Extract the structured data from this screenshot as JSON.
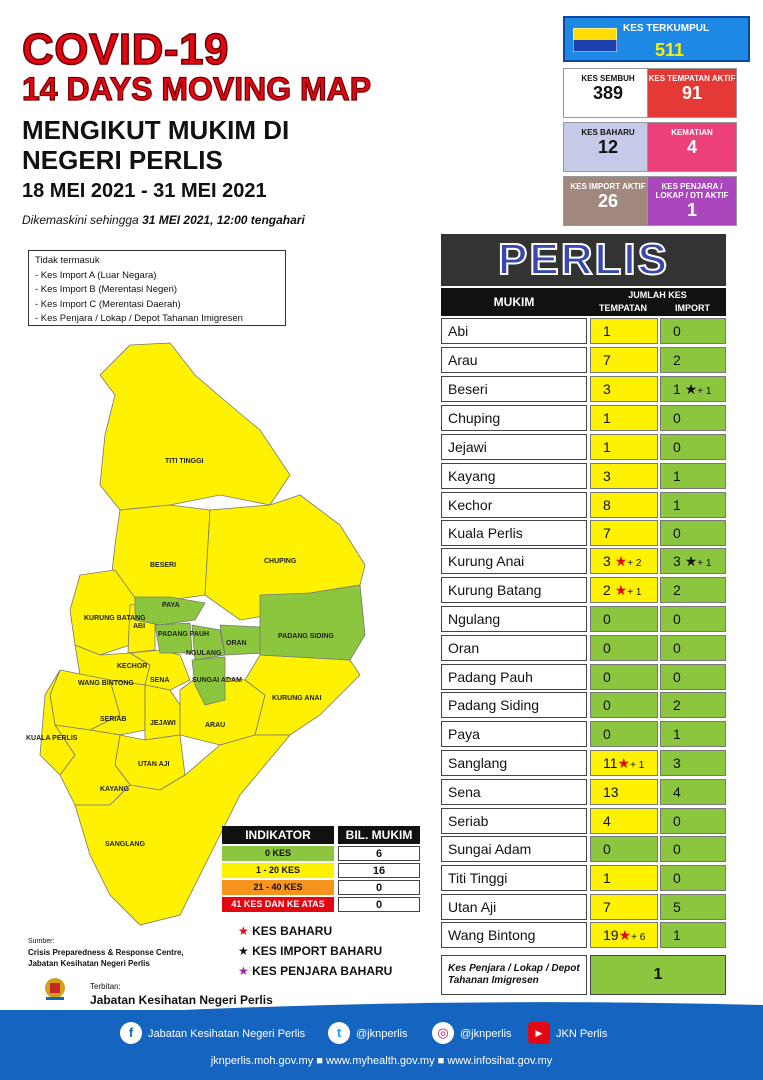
{
  "title": {
    "line1": "COVID-19",
    "line2": "14 DAYS MOVING MAP",
    "line3": "MENGIKUT MUKIM DI NEGERI PERLIS",
    "dates": "18 MEI 2021 - 31 MEI 2021",
    "updated_prefix": "Dikemaskini sehingga ",
    "updated_date": "31 MEI 2021, 12:00 tengahari"
  },
  "note": {
    "heading": "Tidak termasuk",
    "items": [
      "- Kes Import A (Luar Negara)",
      "- Kes Import B (Merentasi Negeri)",
      "- Kes Import C (Merentasi Daerah)",
      "- Kes Penjara / Lokap / Depot Tahanan Imigresen"
    ]
  },
  "stats": {
    "total": {
      "label": "KES TERKUMPUL",
      "value": "511"
    },
    "sembuh": {
      "label": "KES SEMBUH",
      "value": "389"
    },
    "tempatan": {
      "label": "KES TEMPATAN AKTIF",
      "value": "91"
    },
    "baharu": {
      "label": "KES BAHARU",
      "value": "12"
    },
    "kematian": {
      "label": "KEMATIAN",
      "value": "4"
    },
    "import": {
      "label": "KES IMPORT AKTIF",
      "value": "26"
    },
    "penjara": {
      "label": "KES PENJARA / LOKAP / DTI AKTIF",
      "value": "1"
    }
  },
  "table": {
    "state": "PERLIS",
    "col_mukim": "MUKIM",
    "col_jumlah": "JUMLAH KES",
    "col_tempatan": "TEMPATAN",
    "col_import": "IMPORT",
    "rows": [
      {
        "name": "Abi",
        "tempatan": "1",
        "t_extra": "",
        "import": "0",
        "i_extra": ""
      },
      {
        "name": "Arau",
        "tempatan": "7",
        "t_extra": "",
        "import": "2",
        "i_extra": ""
      },
      {
        "name": "Beseri",
        "tempatan": "3",
        "t_extra": "",
        "import": "1",
        "i_extra": "+ 1"
      },
      {
        "name": "Chuping",
        "tempatan": "1",
        "t_extra": "",
        "import": "0",
        "i_extra": ""
      },
      {
        "name": "Jejawi",
        "tempatan": "1",
        "t_extra": "",
        "import": "0",
        "i_extra": ""
      },
      {
        "name": "Kayang",
        "tempatan": "3",
        "t_extra": "",
        "import": "1",
        "i_extra": ""
      },
      {
        "name": "Kechor",
        "tempatan": "8",
        "t_extra": "",
        "import": "1",
        "i_extra": ""
      },
      {
        "name": "Kuala Perlis",
        "tempatan": "7",
        "t_extra": "",
        "import": "0",
        "i_extra": ""
      },
      {
        "name": "Kurung Anai",
        "tempatan": "3",
        "t_extra": "+ 2",
        "import": "3",
        "i_extra": "+ 1"
      },
      {
        "name": "Kurung Batang",
        "tempatan": "2",
        "t_extra": "+ 1",
        "import": "2",
        "i_extra": ""
      },
      {
        "name": "Ngulang",
        "tempatan": "0",
        "t_extra": "",
        "import": "0",
        "i_extra": ""
      },
      {
        "name": "Oran",
        "tempatan": "0",
        "t_extra": "",
        "import": "0",
        "i_extra": ""
      },
      {
        "name": "Padang Pauh",
        "tempatan": "0",
        "t_extra": "",
        "import": "0",
        "i_extra": ""
      },
      {
        "name": "Padang Siding",
        "tempatan": "0",
        "t_extra": "",
        "import": "2",
        "i_extra": ""
      },
      {
        "name": "Paya",
        "tempatan": "0",
        "t_extra": "",
        "import": "1",
        "i_extra": ""
      },
      {
        "name": "Sanglang",
        "tempatan": "11",
        "t_extra": "+ 1",
        "import": "3",
        "i_extra": ""
      },
      {
        "name": "Sena",
        "tempatan": "13",
        "t_extra": "",
        "import": "4",
        "i_extra": ""
      },
      {
        "name": "Seriab",
        "tempatan": "4",
        "t_extra": "",
        "import": "0",
        "i_extra": ""
      },
      {
        "name": "Sungai Adam",
        "tempatan": "0",
        "t_extra": "",
        "import": "0",
        "i_extra": ""
      },
      {
        "name": "Titi Tinggi",
        "tempatan": "1",
        "t_extra": "",
        "import": "0",
        "i_extra": ""
      },
      {
        "name": "Utan Aji",
        "tempatan": "7",
        "t_extra": "",
        "import": "5",
        "i_extra": ""
      },
      {
        "name": "Wang Bintong",
        "tempatan": "19",
        "t_extra": "+ 6",
        "import": "1",
        "i_extra": ""
      }
    ],
    "penjara_label": "Kes Penjara / Lokap / Depot Tahanan Imigresen",
    "penjara_value": "1"
  },
  "indicator": {
    "head": "INDIKATOR",
    "head2": "BIL. MUKIM",
    "rows": [
      {
        "label": "0 KES",
        "value": "6",
        "color": "#8cc63f"
      },
      {
        "label": "1 - 20 KES",
        "value": "16",
        "color": "#fff200"
      },
      {
        "label": "21 - 40 KES",
        "value": "0",
        "color": "#f7941d"
      },
      {
        "label": "41 KES DAN KE ATAS",
        "value": "0",
        "color": "#e30613"
      }
    ],
    "legend": [
      {
        "label": "KES BAHARU",
        "color": "#e30613"
      },
      {
        "label": "KES IMPORT BAHARU",
        "color": "#111111"
      },
      {
        "label": "KES PENJARA BAHARU",
        "color": "#9c27b0"
      }
    ]
  },
  "map_labels": {
    "titi_tinggi": "TITI TINGGI",
    "beseri": "BESERI",
    "chuping": "CHUPING",
    "kurung_batang": "KURUNG BATANG",
    "abi": "ABI",
    "paya": "PAYA",
    "padang_pauh": "PADANG PAUH",
    "ngulang": "NGULANG",
    "oran": "ORAN",
    "padang_siding": "PADANG SIDING",
    "kechor": "KECHOR",
    "wang_bintong": "WANG BINTONG",
    "sena": "SENA",
    "sungai_adam": "SUNGAI ADAM",
    "kurung_anai": "KURUNG ANAI",
    "seriab": "SERIAB",
    "jejawi": "JEJAWI",
    "arau": "ARAU",
    "kuala_perlis": "KUALA PERLIS",
    "utan_aji": "UTAN AJI",
    "kayang": "KAYANG",
    "sanglang": "SANGLANG"
  },
  "source": {
    "label": "Sumber:",
    "line1": "Crisis Preparedness & Response Centre,",
    "line2": "Jabatan Kesihatan Negeri Perlis"
  },
  "publisher": {
    "label": "Terbitan:",
    "name": "Jabatan Kesihatan Negeri Perlis"
  },
  "footer": {
    "facebook": "Jabatan Kesihatan Negeri Perlis",
    "twitter": "@jknperlis",
    "instagram": "@jknperlis",
    "youtube": "JKN Perlis",
    "websites": "jknperlis.moh.gov.my ■ www.myhealth.gov.my ■ www.infosihat.gov.my"
  }
}
